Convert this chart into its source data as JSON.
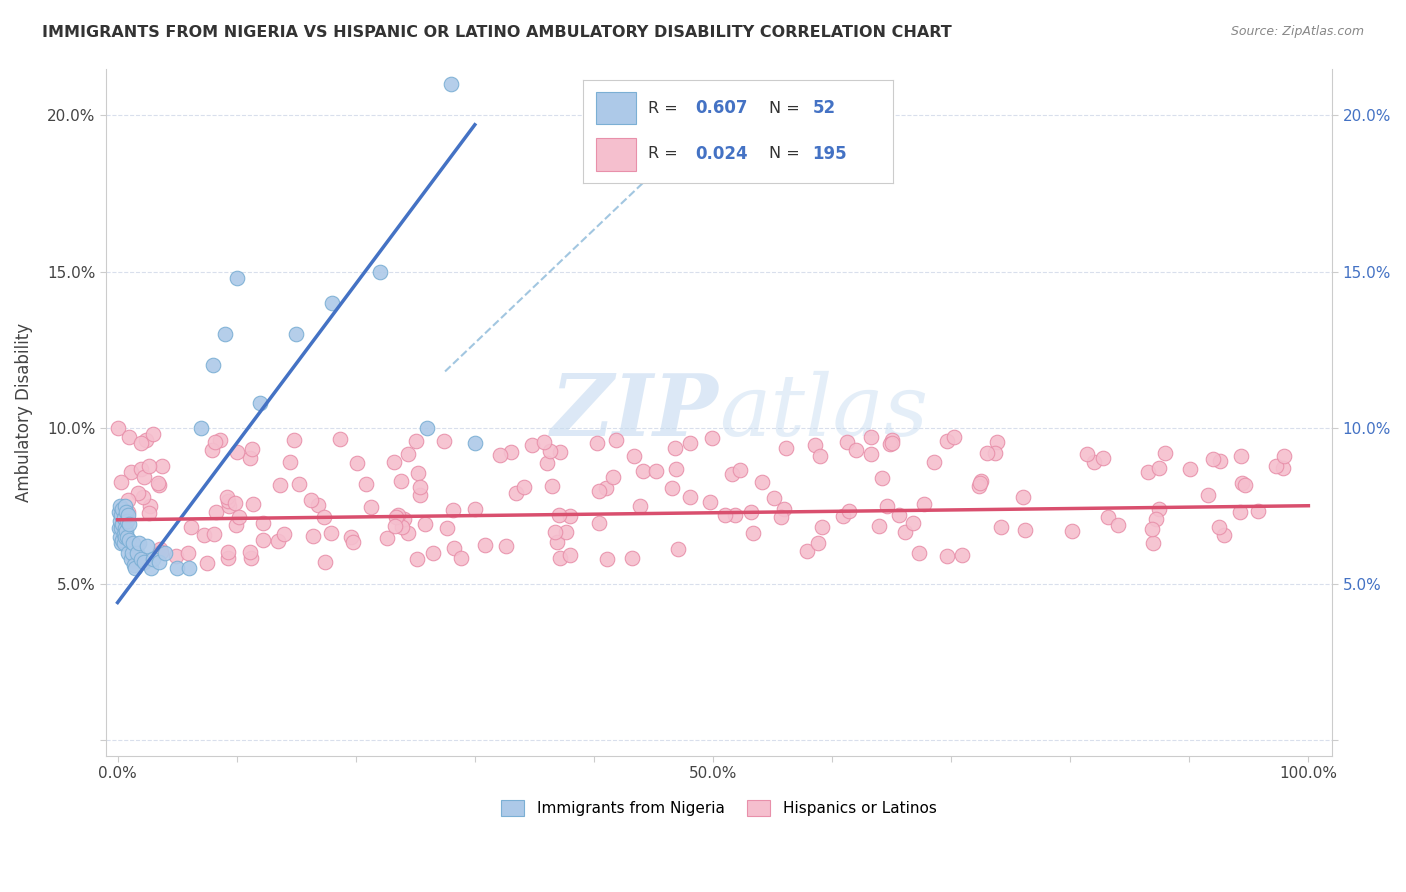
{
  "title": "IMMIGRANTS FROM NIGERIA VS HISPANIC OR LATINO AMBULATORY DISABILITY CORRELATION CHART",
  "source": "Source: ZipAtlas.com",
  "ylabel": "Ambulatory Disability",
  "xlim": [
    -0.01,
    1.02
  ],
  "ylim": [
    -0.005,
    0.215
  ],
  "xtick_vals": [
    0.0,
    0.1,
    0.2,
    0.3,
    0.4,
    0.5,
    0.6,
    0.7,
    0.8,
    0.9,
    1.0
  ],
  "xticklabels": [
    "0.0%",
    "",
    "",
    "",
    "",
    "50.0%",
    "",
    "",
    "",
    "",
    "100.0%"
  ],
  "ytick_vals": [
    0.0,
    0.05,
    0.1,
    0.15,
    0.2
  ],
  "yticklabels_left": [
    "",
    "5.0%",
    "10.0%",
    "15.0%",
    "20.0%"
  ],
  "yticklabels_right": [
    "",
    "5.0%",
    "10.0%",
    "15.0%",
    "20.0%"
  ],
  "blue_R": "0.607",
  "blue_N": "52",
  "pink_R": "0.024",
  "pink_N": "195",
  "blue_color": "#adc9e8",
  "blue_edge": "#7bafd4",
  "pink_color": "#f5bfce",
  "pink_edge": "#e890aa",
  "blue_line_color": "#4472c4",
  "pink_line_color": "#d94f6e",
  "diag_line_color": "#7bafd4",
  "watermark_zip_color": "#c5daf0",
  "watermark_atlas_color": "#c5daf0",
  "legend_label_blue": "Immigrants from Nigeria",
  "legend_label_pink": "Hispanics or Latinos",
  "blue_line_x": [
    0.0,
    0.3
  ],
  "blue_line_y": [
    0.044,
    0.197
  ],
  "pink_line_x": [
    0.0,
    1.0
  ],
  "pink_line_y": [
    0.0705,
    0.075
  ],
  "diag_line_x": [
    0.275,
    0.52
  ],
  "diag_line_y": [
    0.118,
    0.207
  ]
}
